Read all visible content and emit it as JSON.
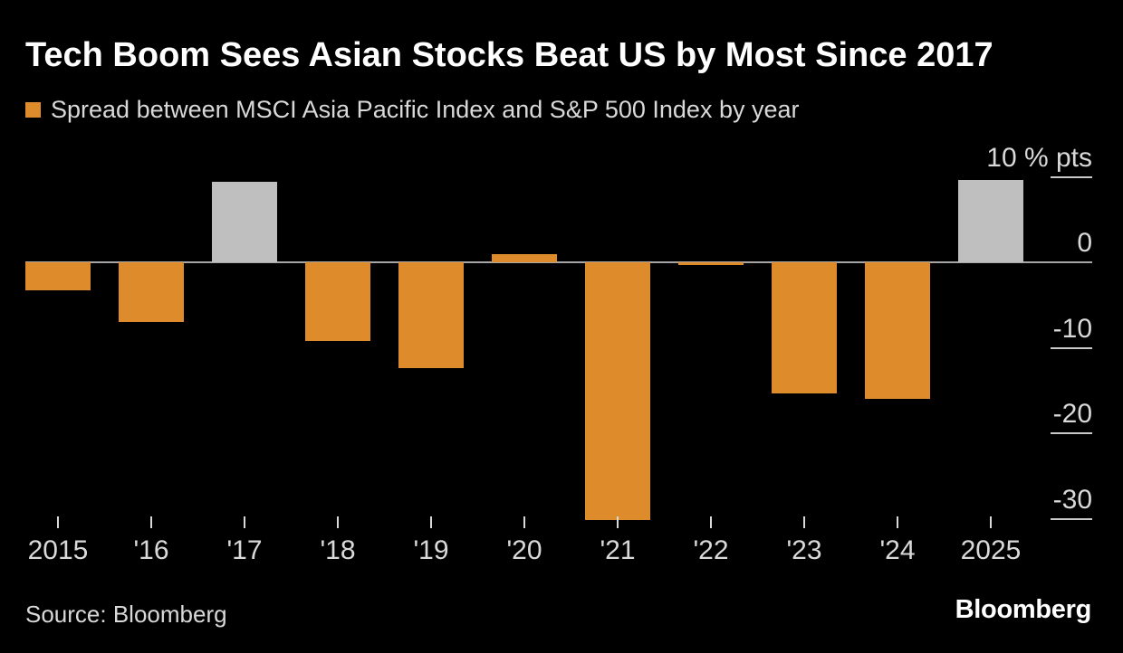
{
  "header": {
    "title": "Tech Boom Sees Asian Stocks Beat US by Most Since 2017",
    "legend": {
      "label": "Spread between MSCI Asia Pacific Index and S&P 500 Index by year",
      "swatch_color": "#de8c2b"
    }
  },
  "footer": {
    "source": "Source: Bloomberg",
    "brand": "Bloomberg"
  },
  "colors": {
    "background": "#000000",
    "bar_default": "#de8c2b",
    "bar_highlight": "#bfbfbf",
    "zero_line": "#a6a6a6",
    "axis_text": "#d9d9d9",
    "tick_line": "#c9c9c9",
    "title_text": "#ffffff"
  },
  "chart_data": {
    "type": "bar",
    "title": "Tech Boom Sees Asian Stocks Beat US by Most Since 2017",
    "legend_label": "Spread between MSCI Asia Pacific Index and S&P 500 Index by year",
    "unit": "% pts",
    "categories": [
      "2015",
      "'16",
      "'17",
      "'18",
      "'19",
      "'20",
      "'21",
      "'22",
      "'23",
      "'24",
      "2025"
    ],
    "values": [
      -3.3,
      -7.0,
      9.4,
      -9.2,
      -12.4,
      0.9,
      -30.2,
      -0.3,
      -15.3,
      -16.0,
      9.6
    ],
    "highlighted_categories": [
      "'17",
      "2025"
    ],
    "yticks": [
      {
        "value": 10,
        "label": "10 % pts"
      },
      {
        "value": 0,
        "label": "0"
      },
      {
        "value": -10,
        "label": "-10"
      },
      {
        "value": -20,
        "label": "-20"
      },
      {
        "value": -30,
        "label": "-30"
      }
    ],
    "ylim": [
      -32,
      12
    ],
    "grid": false,
    "y_axis_position": "right",
    "legend_position": "top-left",
    "source": "Source: Bloomberg"
  }
}
